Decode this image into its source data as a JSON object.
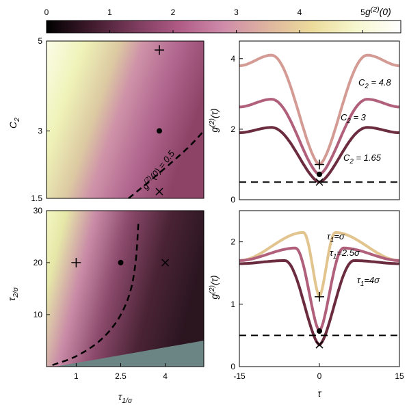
{
  "colorbar": {
    "label": "g^(2)(0)",
    "ticks": [
      0,
      1,
      2,
      3,
      4,
      5
    ],
    "range": [
      0,
      5.6
    ],
    "colormap": [
      "#000000",
      "#3f1a2c",
      "#7b3b5c",
      "#b05b86",
      "#cf8caa",
      "#dfb59f",
      "#ecdc9b",
      "#f6f7cf",
      "#ffffff"
    ]
  },
  "chart_data": [
    {
      "id": "a",
      "type": "heatmap",
      "xlabel": "",
      "ylabel": "C_2",
      "xlim": [
        0.4,
        5
      ],
      "ylim": [
        1.5,
        5
      ],
      "yticks": [
        1.5,
        3,
        5
      ],
      "contour": {
        "label": "g^(2)(0) = 0.5",
        "value": 0.5,
        "points": [
          [
            2.8,
            1.5
          ],
          [
            3.6,
            2.0
          ],
          [
            4.5,
            2.6
          ],
          [
            5.0,
            3.0
          ]
        ]
      },
      "markers": [
        {
          "kind": "plus",
          "x": 3.7,
          "y": 4.8
        },
        {
          "kind": "dot",
          "x": 3.7,
          "y": 3.0
        },
        {
          "kind": "cross",
          "x": 3.7,
          "y": 1.65
        }
      ]
    },
    {
      "id": "b",
      "type": "line",
      "xlabel": "",
      "ylabel": "g^(2)(τ)",
      "xlim": [
        -15,
        15
      ],
      "ylim": [
        0,
        4.5
      ],
      "yticks": [
        0,
        2,
        4
      ],
      "series": [
        {
          "name": "C_2 = 4.8",
          "color": "#d49b95",
          "peak": 4.1,
          "min": 1.0,
          "far": 3.8
        },
        {
          "name": "C_2 = 3",
          "color": "#b0607a",
          "peak": 2.85,
          "min": 0.72,
          "far": 2.63
        },
        {
          "name": "C_2 = 1.65",
          "color": "#6c2c40",
          "peak": 2.05,
          "min": 0.5,
          "far": 1.9
        }
      ],
      "hline": 0.5,
      "markers": [
        {
          "kind": "plus",
          "x": 0,
          "y": 1.0
        },
        {
          "kind": "dot",
          "x": 0,
          "y": 0.72
        },
        {
          "kind": "cross",
          "x": 0,
          "y": 0.5
        }
      ]
    },
    {
      "id": "c",
      "type": "heatmap",
      "xlabel": "τ_1/σ",
      "ylabel": "τ_2/σ",
      "xlim": [
        0,
        5.3
      ],
      "ylim": [
        0,
        30
      ],
      "xticks": [
        {
          "v": 1,
          "t": "1"
        },
        {
          "v": 2.5,
          "t": "2.5"
        },
        {
          "v": 4,
          "t": "4"
        }
      ],
      "yticks": [
        10,
        20,
        30
      ],
      "contour": {
        "value": 0.5,
        "points": [
          [
            0.2,
            0.3
          ],
          [
            1.0,
            2.0
          ],
          [
            1.8,
            5.0
          ],
          [
            2.4,
            9.0
          ],
          [
            2.8,
            14.0
          ],
          [
            3.0,
            20.0
          ],
          [
            3.1,
            28.0
          ]
        ]
      },
      "excluded_region_color": "#6b8585",
      "excluded_region": [
        [
          0.3,
          0
        ],
        [
          5.3,
          0
        ],
        [
          5.3,
          5.0
        ]
      ],
      "markers": [
        {
          "kind": "plus",
          "x": 1,
          "y": 20
        },
        {
          "kind": "dot",
          "x": 2.5,
          "y": 20
        },
        {
          "kind": "cross",
          "x": 4,
          "y": 20
        }
      ]
    },
    {
      "id": "d",
      "type": "line",
      "xlabel": "τ",
      "ylabel": "g^(2)(τ)",
      "xlim": [
        -15,
        15
      ],
      "ylim": [
        0,
        2.5
      ],
      "xticks": [
        -15,
        0,
        15
      ],
      "yticks": [
        0,
        1,
        2
      ],
      "series": [
        {
          "name": "τ_1=σ",
          "color": "#e2c48f",
          "peak": 2.15,
          "min": 1.12,
          "far": 1.7,
          "peakAt": 3
        },
        {
          "name": "τ_1=2.5σ",
          "color": "#b0607a",
          "peak": 1.9,
          "min": 0.57,
          "far": 1.7,
          "peakAt": 4.5
        },
        {
          "name": "τ_1=4σ",
          "color": "#6c2c40",
          "peak": 1.7,
          "min": 0.35,
          "far": 1.65,
          "peakAt": 6.5
        }
      ],
      "hline": 0.5,
      "markers": [
        {
          "kind": "plus",
          "x": 0,
          "y": 1.12
        },
        {
          "kind": "dot",
          "x": 0,
          "y": 0.57
        },
        {
          "kind": "cross",
          "x": 0,
          "y": 0.35
        }
      ]
    }
  ]
}
